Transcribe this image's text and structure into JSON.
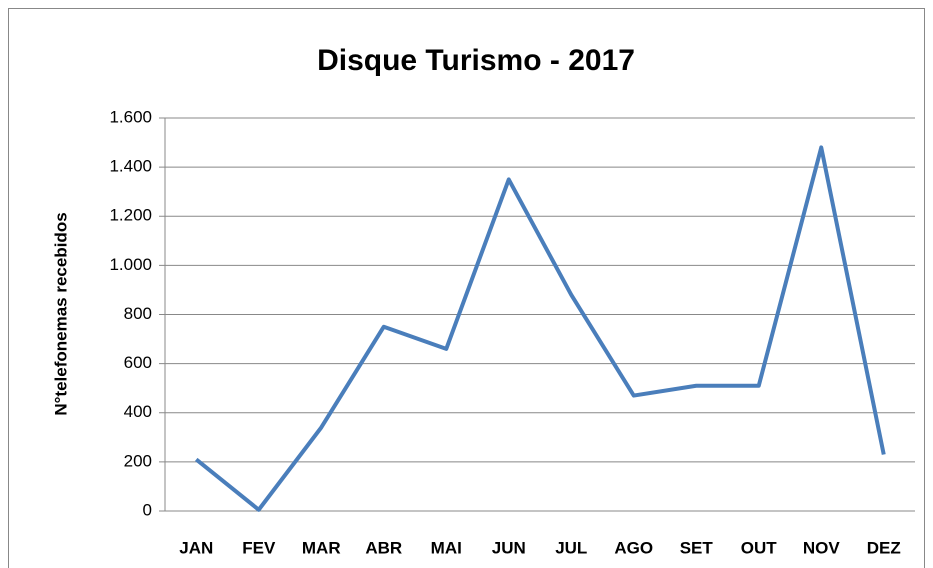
{
  "chart_data": {
    "type": "line",
    "title": "Disque Turismo - 2017",
    "y_label": "N°telefonemas recebidos",
    "categories": [
      "JAN",
      "FEV",
      "MAR",
      "ABR",
      "MAI",
      "JUN",
      "JUL",
      "AGO",
      "SET",
      "OUT",
      "NOV",
      "DEZ"
    ],
    "series": [
      {
        "name": "Disque Turismo",
        "color": "#4a7ebb",
        "values": [
          210,
          5,
          340,
          750,
          660,
          1350,
          880,
          470,
          510,
          510,
          1480,
          230
        ]
      }
    ],
    "ylim": [
      0,
      1600
    ],
    "yticks": [
      0,
      200,
      400,
      600,
      800,
      {
        "value": 1000,
        "label": "1.000"
      },
      {
        "value": 1200,
        "label": "1.200"
      },
      {
        "value": 1400,
        "label": "1.400"
      },
      {
        "value": 1600,
        "label": "1.600"
      }
    ],
    "grid": true
  }
}
